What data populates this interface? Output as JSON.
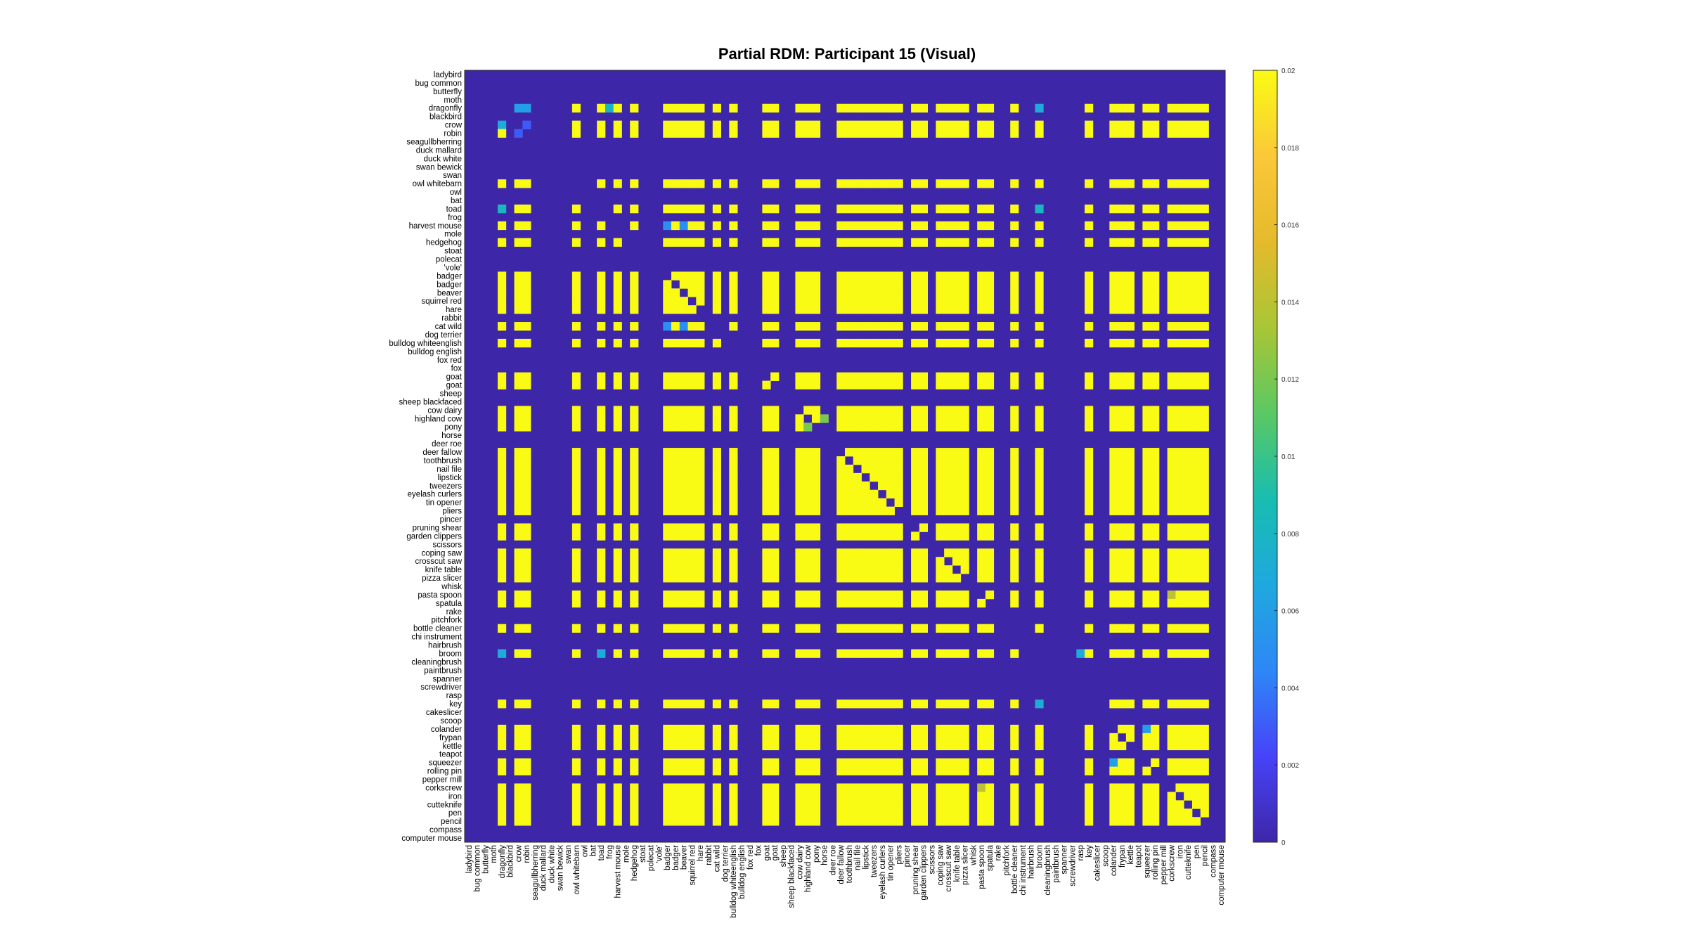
{
  "chart_data": {
    "type": "heatmap",
    "title": "Partial RDM: Participant 15 (Visual)",
    "labels": [
      "ladybird",
      "bug common",
      "butterfly",
      "moth",
      "dragonfly",
      "blackbird",
      "crow",
      "robin",
      "seagullbherring",
      "duck mallard",
      "duck white",
      "swan bewick",
      "swan",
      "owl whitebarn",
      "owl",
      "bat",
      "toad",
      "frog",
      "harvest mouse",
      "mole",
      "hedgehog",
      "stoat",
      "polecat",
      "'vole'",
      "badger",
      "badger",
      "beaver",
      "squirrel red",
      "hare",
      "rabbit",
      "cat wild",
      "dog terrier",
      "bulldog whiteenglish",
      "bulldog english",
      "fox red",
      "fox",
      "goat",
      "goat",
      "sheep",
      "sheep blackfaced",
      "cow dairy",
      "highland cow",
      "pony",
      "horse",
      "deer roe",
      "deer fallow",
      "toothbrush",
      "nail file",
      "lipstick",
      "tweezers",
      "eyelash curlers",
      "tin opener",
      "pliers",
      "pincer",
      "pruning shear",
      "garden clippers",
      "scissors",
      "coping saw",
      "crosscut saw",
      "knife table",
      "pizza slicer",
      "whisk",
      "pasta spoon",
      "spatula",
      "rake",
      "pitchfork",
      "bottle cleaner",
      "chi instrument",
      "hairbrush",
      "broom",
      "cleaningbrush",
      "paintbrush",
      "spanner",
      "screwdriver",
      "rasp",
      "key",
      "cakeslicer",
      "scoop",
      "colander",
      "frypan",
      "kettle",
      "teapot",
      "squeezer",
      "rolling pin",
      "pepper mill",
      "corkscrew",
      "iron",
      "cutteknife",
      "pen",
      "pencil",
      "compass",
      "computer mouse"
    ],
    "active": [
      4,
      6,
      7,
      13,
      16,
      18,
      20,
      24,
      25,
      26,
      27,
      28,
      30,
      32,
      36,
      37,
      40,
      41,
      42,
      45,
      46,
      47,
      48,
      49,
      50,
      51,
      52,
      54,
      55,
      57,
      58,
      59,
      60,
      62,
      63,
      66,
      69,
      75,
      78,
      79,
      80,
      82,
      83,
      85,
      86,
      87,
      88,
      89
    ],
    "special_cells": [
      {
        "row": "dragonfly",
        "col": "crow",
        "value": 0.006
      },
      {
        "row": "dragonfly",
        "col": "robin",
        "value": 0.006
      },
      {
        "row": "dragonfly",
        "col": "frog",
        "value": 0.008
      },
      {
        "row": "dragonfly",
        "col": "broom",
        "value": 0.007
      },
      {
        "row": "crow",
        "col": "dragonfly",
        "value": 0.007
      },
      {
        "row": "crow",
        "col": "robin",
        "value": 0.003
      },
      {
        "row": "robin",
        "col": "crow",
        "value": 0.003
      },
      {
        "row": "toad",
        "col": "dragonfly",
        "value": 0.008
      },
      {
        "row": "toad",
        "col": "broom",
        "value": 0.008
      },
      {
        "row": "broom",
        "col": "dragonfly",
        "value": 0.007
      },
      {
        "row": "broom",
        "col": "toad",
        "value": 0.007
      },
      {
        "row": "broom",
        "col": "rasp",
        "value": 0.007
      },
      {
        "row": "key",
        "col": "broom",
        "value": 0.007
      },
      {
        "row": "harvest mouse",
        "col": "badger",
        "value": 0.005
      },
      {
        "row": "harvest mouse",
        "col": "beaver",
        "value": 0.005
      },
      {
        "row": "cat wild",
        "col": "badger",
        "value": 0.005
      },
      {
        "row": "cat wild",
        "col": "beaver",
        "value": 0.005
      },
      {
        "row": "highland cow",
        "col": "horse",
        "value": 0.012
      },
      {
        "row": "pony",
        "col": "highland cow",
        "value": 0.012
      },
      {
        "row": "corkscrew",
        "col": "pasta spoon",
        "value": 0.014
      },
      {
        "row": "pasta spoon",
        "col": "corkscrew",
        "value": 0.014
      },
      {
        "row": "squeezer",
        "col": "colander",
        "value": 0.006
      },
      {
        "row": "colander",
        "col": "squeezer",
        "value": 0.006
      }
    ],
    "colorbar": {
      "min": 0,
      "max": 0.02,
      "ticks": [
        "0",
        "0.002",
        "0.004",
        "0.006",
        "0.008",
        "0.01",
        "0.012",
        "0.014",
        "0.016",
        "0.018",
        "0.02"
      ]
    },
    "colormap": [
      "#3e26a8",
      "#4743f8",
      "#2e87f7",
      "#1fa8de",
      "#18bdb0",
      "#5bc863",
      "#a9c636",
      "#e5ba2c",
      "#fbc839",
      "#f9fb14"
    ]
  }
}
